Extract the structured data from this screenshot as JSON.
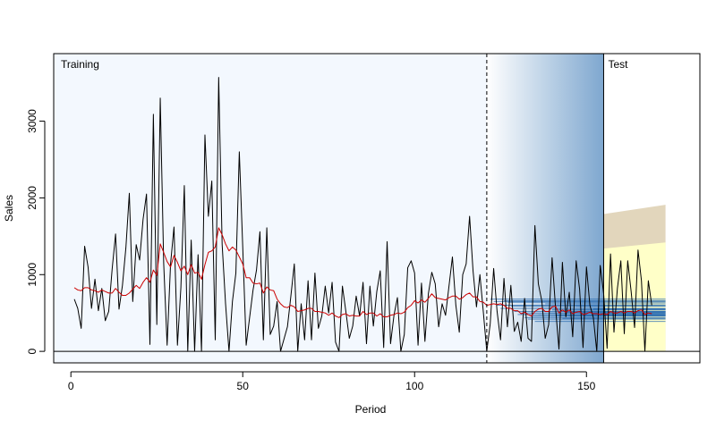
{
  "chart_data": {
    "type": "line",
    "xlabel": "Period",
    "ylabel": "Sales",
    "xlim": [
      -5,
      183
    ],
    "ylim": [
      -150,
      3880
    ],
    "x_ticks": [
      0,
      50,
      100,
      150
    ],
    "y_ticks": [
      0,
      1000,
      2000,
      3000
    ],
    "x_tick_labels": [
      "0",
      "50",
      "100",
      "150"
    ],
    "y_tick_labels": [
      "0",
      "1000",
      "2000",
      "3000"
    ],
    "regions": {
      "training_label": "Training",
      "test_label": "Test",
      "training_end": 121,
      "test_start": 155,
      "test_end": 173,
      "training_bg": "#f3f8fe",
      "holdout_gradient": [
        "#ffffff",
        "#7ea7cf"
      ],
      "test_interval_outer": "#e2d6bc",
      "test_interval_inner": "#ffffc8"
    },
    "colors": {
      "actual": "#000000",
      "fitted": "#cc0000",
      "origin_forecasts": "#2f6fb2"
    },
    "test_intervals": {
      "x": [
        155,
        173
      ],
      "outer_upper": [
        1790,
        1910
      ],
      "inner_upper": [
        1340,
        1420
      ],
      "lower": [
        0,
        0
      ]
    },
    "series": [
      {
        "values": [
          680,
          560,
          300,
          1370,
          1100,
          560,
          940,
          530,
          820,
          400,
          520,
          1070,
          1530,
          550,
          860,
          1350,
          2060,
          650,
          1390,
          1190,
          1720,
          2050,
          90,
          3090,
          350,
          3300,
          1150,
          80,
          1140,
          1620,
          80,
          830,
          2160,
          0,
          1450,
          0,
          1260,
          0,
          2820,
          1760,
          2220,
          150,
          3570,
          1400,
          620,
          0,
          650,
          1020,
          2600,
          1360,
          80,
          440,
          800,
          1060,
          1560,
          150,
          1610,
          220,
          330,
          650,
          0,
          160,
          320,
          720,
          1140,
          0,
          620,
          150,
          920,
          150,
          1020,
          300,
          460,
          850,
          500,
          900,
          120,
          0,
          850,
          520,
          170,
          330,
          720,
          460,
          900,
          100,
          850,
          330,
          780,
          1050,
          50,
          1430,
          100,
          470,
          700,
          0,
          220,
          1090,
          1180,
          1020,
          80,
          890,
          130,
          750,
          1030,
          880,
          320,
          620,
          470,
          850,
          1230,
          600,
          250,
          1000,
          1140,
          1760,
          1050,
          580,
          1000,
          510,
          0,
          360,
          1080,
          520,
          150,
          950,
          320,
          860,
          260,
          380,
          130,
          690,
          170,
          130,
          1640,
          880,
          660,
          170,
          350,
          1220,
          570,
          30,
          1160,
          450,
          770,
          190,
          1180,
          810,
          50,
          1100,
          600,
          440,
          0,
          1120,
          750,
          40,
          1270,
          250,
          820,
          1180,
          230,
          1180,
          780,
          310,
          1320,
          920,
          0,
          920,
          600
        ]
      },
      {
        "values": [
          830,
          800,
          790,
          830,
          830,
          800,
          790,
          770,
          800,
          780,
          760,
          760,
          820,
          770,
          730,
          730,
          760,
          810,
          860,
          820,
          900,
          960,
          900,
          1060,
          990,
          1400,
          1290,
          1170,
          1100,
          1250,
          1160,
          1050,
          1110,
          1000,
          1130,
          1020,
          1030,
          940,
          1130,
          1290,
          1310,
          1360,
          1610,
          1520,
          1400,
          1310,
          1360,
          1320,
          1230,
          1140,
          960,
          960,
          890,
          880,
          890,
          760,
          840,
          800,
          790,
          680,
          620,
          580,
          570,
          600,
          580,
          520,
          530,
          540,
          560,
          560,
          520,
          520,
          510,
          500,
          470,
          500,
          460,
          440,
          480,
          490,
          460,
          470,
          460,
          460,
          520,
          480,
          500,
          500,
          460,
          490,
          450,
          450,
          470,
          480,
          500,
          490,
          510,
          570,
          600,
          660,
          630,
          670,
          640,
          690,
          750,
          700,
          690,
          680,
          670,
          700,
          720,
          720,
          680,
          700,
          740,
          760,
          710,
          710,
          650,
          640,
          600,
          610,
          620,
          610,
          620,
          600,
          560,
          560,
          530,
          530,
          490,
          510,
          480,
          460,
          520,
          550,
          560,
          520,
          520,
          580,
          590,
          500,
          540,
          510,
          540,
          490,
          510,
          520,
          480,
          490,
          510,
          490,
          490,
          480,
          490,
          480,
          520,
          500,
          500,
          520,
          500,
          520,
          520,
          500,
          530,
          540,
          480,
          500,
          490
        ]
      }
    ],
    "origin_forecasts": {
      "start_origin": 122,
      "horizon_end": 173,
      "levels": [
        680,
        650,
        600,
        560,
        660,
        640,
        590,
        520,
        480,
        500,
        440,
        420,
        460,
        390,
        480,
        560,
        620,
        500,
        540,
        470,
        520,
        430,
        510,
        460,
        540,
        590,
        500,
        470,
        520,
        480,
        550,
        510,
        490
      ]
    }
  }
}
